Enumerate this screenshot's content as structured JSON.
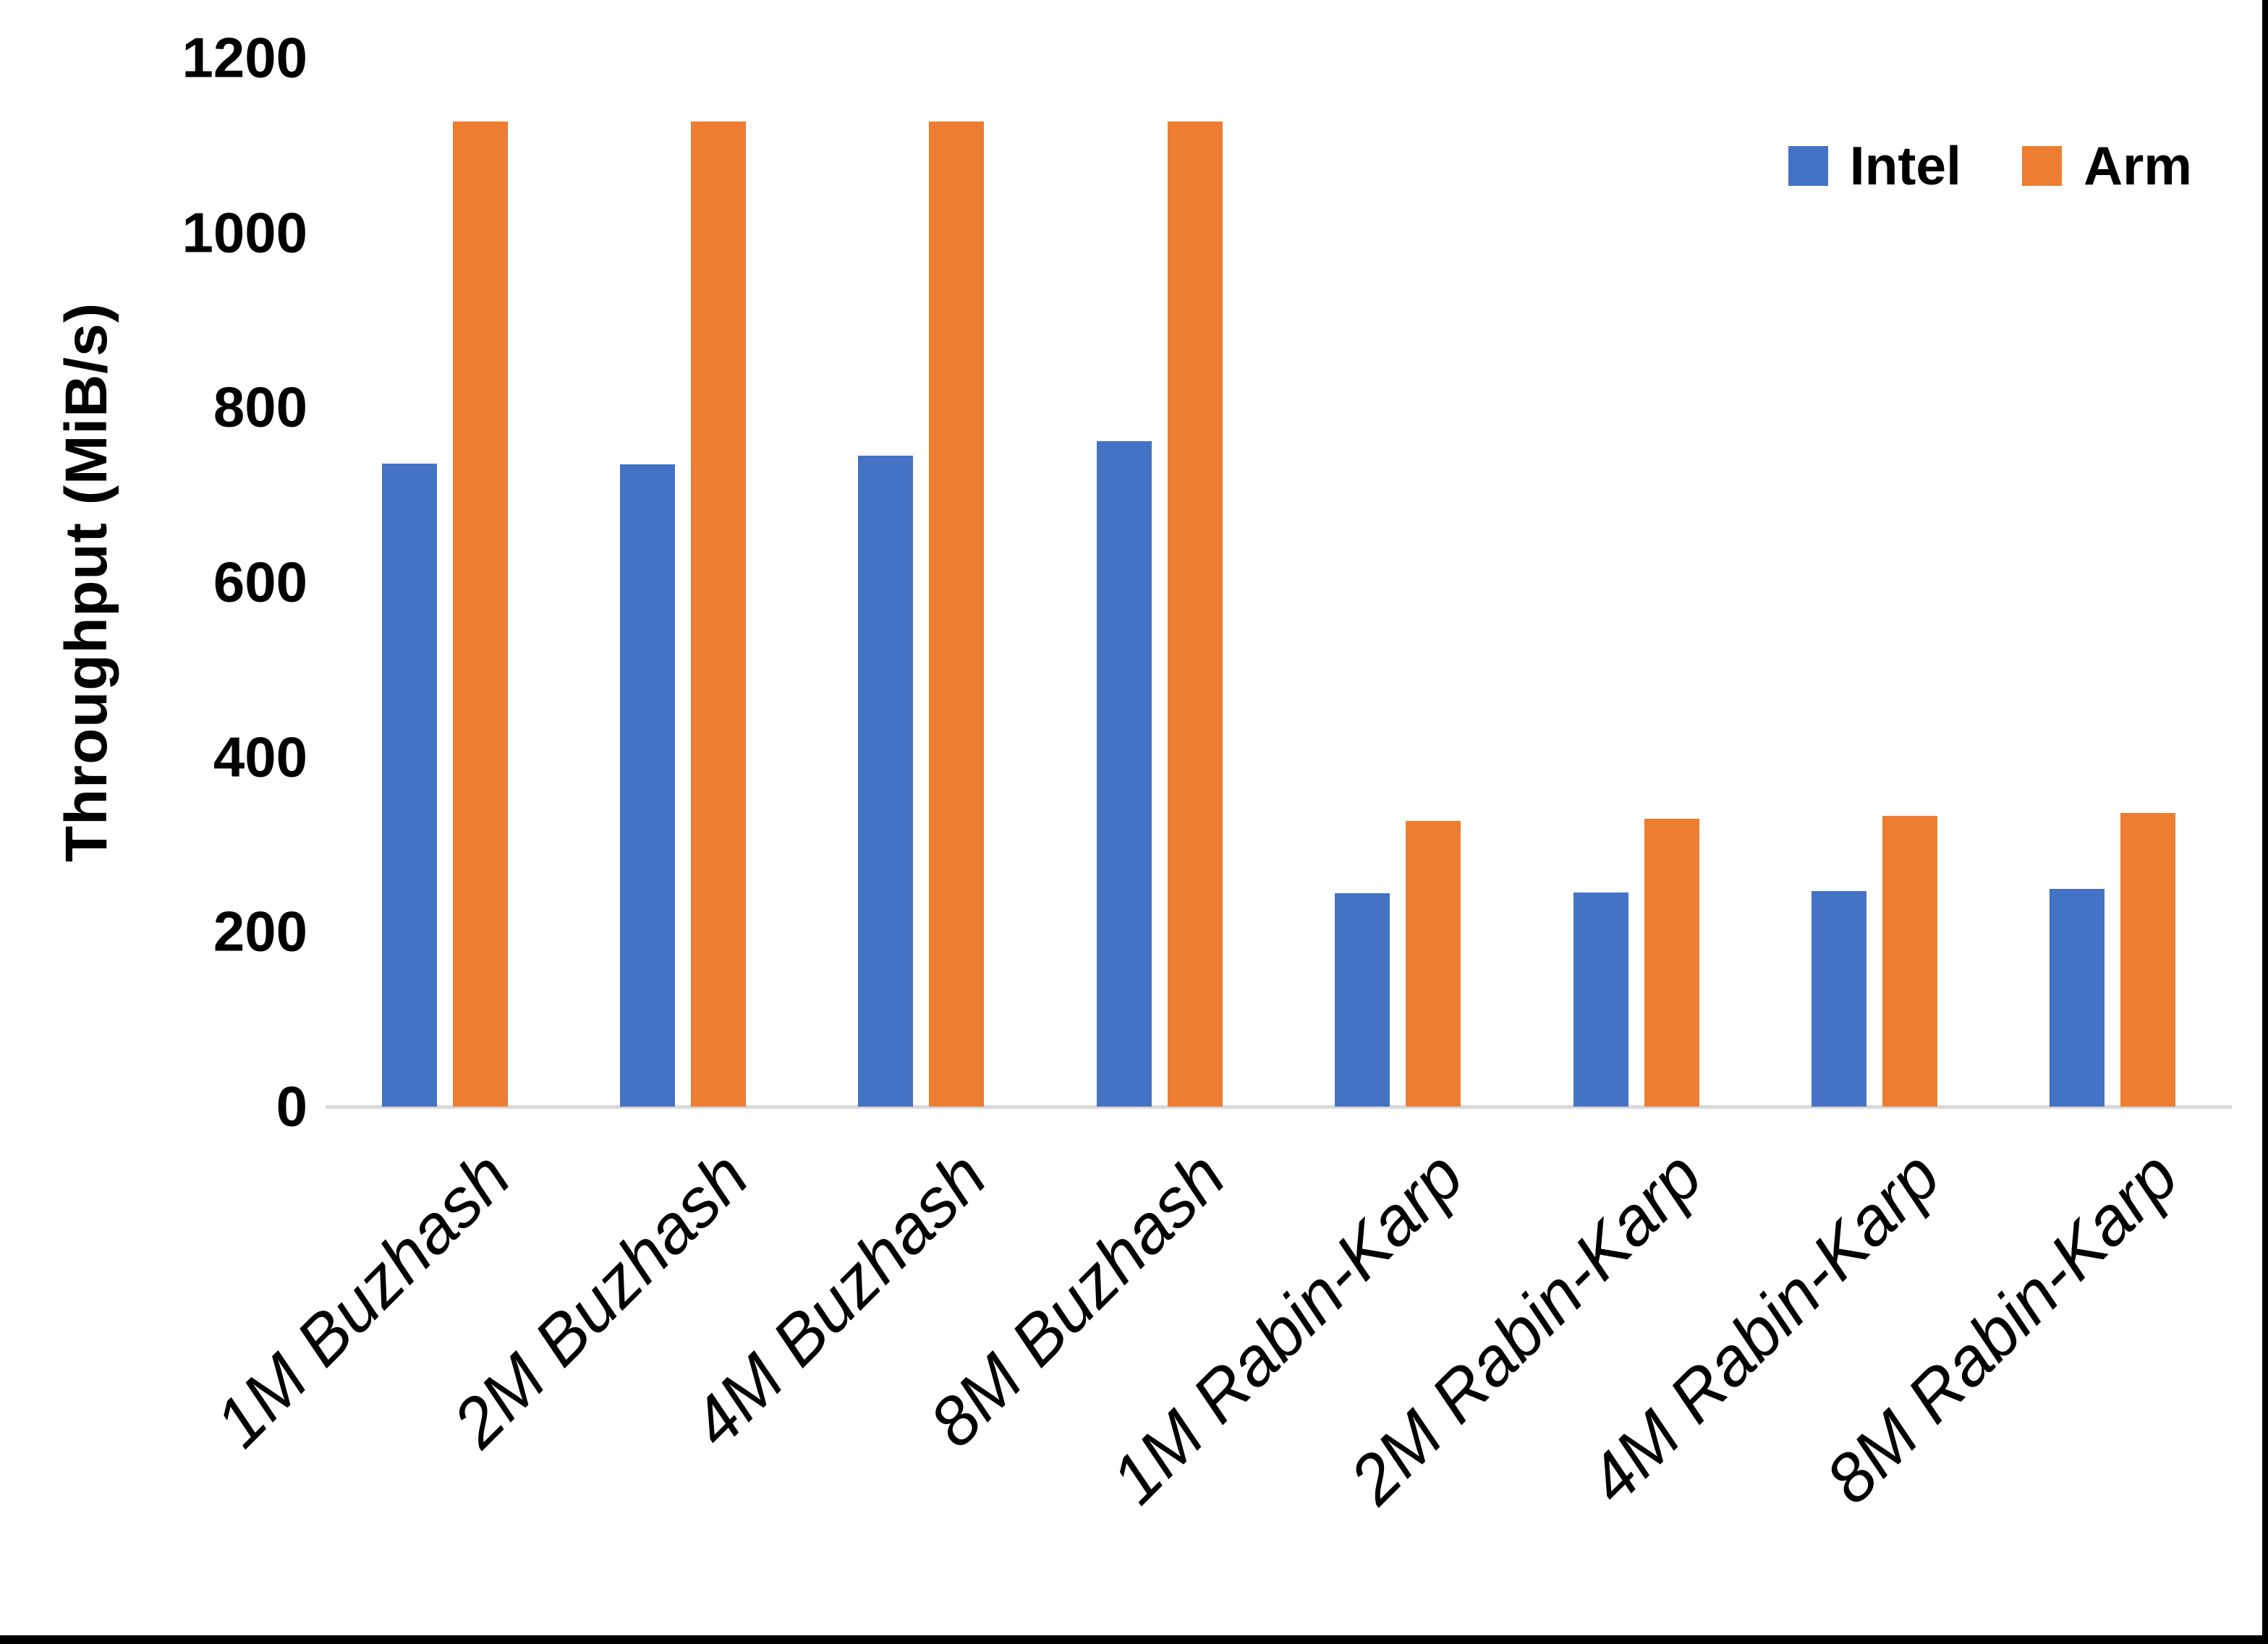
{
  "page": {
    "background": "#FFFFFF",
    "border_color": "#000000"
  },
  "chart_data": {
    "type": "bar",
    "title": "",
    "xlabel": "",
    "ylabel": "Throughput (MiB/s)",
    "ylim": [
      0,
      1200
    ],
    "yticks": [
      0,
      200,
      400,
      600,
      800,
      1000,
      1200
    ],
    "grid": false,
    "legend_position": "top-right",
    "axis_line_color": "#D9D9D9",
    "text_color": "#000000",
    "categories": [
      "1M Buzhash",
      "2M Buzhash",
      "4M Buzhash",
      "8M Buzhash",
      "1M Rabin-Karp",
      "2M Rabin-Karp",
      "4M Rabin-Karp",
      "8M Rabin-Karp"
    ],
    "series": [
      {
        "name": "Intel",
        "color": "#4472C4",
        "values": [
          736,
          735,
          745,
          761,
          244,
          245,
          247,
          249
        ]
      },
      {
        "name": "Arm",
        "color": "#ED7D31",
        "values": [
          1127,
          1127,
          1127,
          1127,
          327,
          329,
          333,
          336
        ]
      }
    ]
  }
}
